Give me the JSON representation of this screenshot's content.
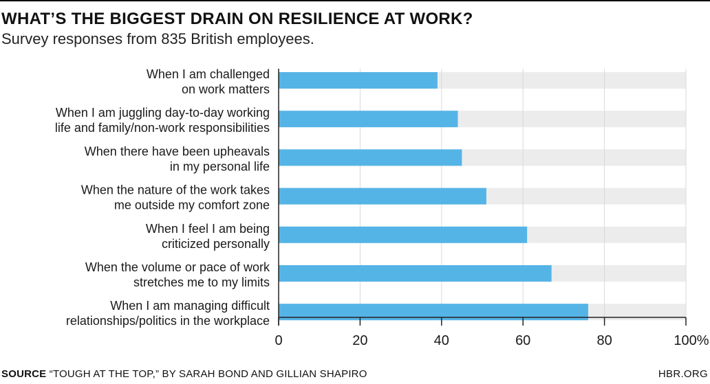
{
  "chart_data": {
    "type": "bar",
    "orientation": "horizontal",
    "title": "WHAT’S THE BIGGEST DRAIN ON RESILIENCE AT WORK?",
    "subtitle": "Survey responses from 835 British employees.",
    "categories": [
      [
        "When I am challenged",
        "on work matters"
      ],
      [
        "When I am juggling day-to-day working",
        "life and family/non-work responsibilities"
      ],
      [
        "When there have been upheavals",
        "in my personal life"
      ],
      [
        "When the nature of the work takes",
        "me outside my comfort zone"
      ],
      [
        "When I feel I am being",
        "criticized personally"
      ],
      [
        "When the volume or pace of work",
        "stretches me to my limits"
      ],
      [
        "When I am managing difficult",
        "relationships/politics in the workplace"
      ]
    ],
    "values": [
      39,
      44,
      45,
      51,
      61,
      67,
      76
    ],
    "xlim": [
      0,
      100
    ],
    "xticks": [
      "0",
      "20",
      "40",
      "60",
      "80",
      "100%"
    ],
    "tick_values": [
      0,
      20,
      40,
      60,
      80,
      100
    ],
    "grid": true,
    "colors": {
      "bar": "#55b4e6",
      "track": "#ececec",
      "grid": "#d9d9d9",
      "axis": "#222222"
    }
  },
  "footer": {
    "source_label": "SOURCE",
    "source_text": " “TOUGH AT THE TOP,” BY SARAH BOND AND GILLIAN SHAPIRO",
    "brand": "HBR.ORG"
  }
}
